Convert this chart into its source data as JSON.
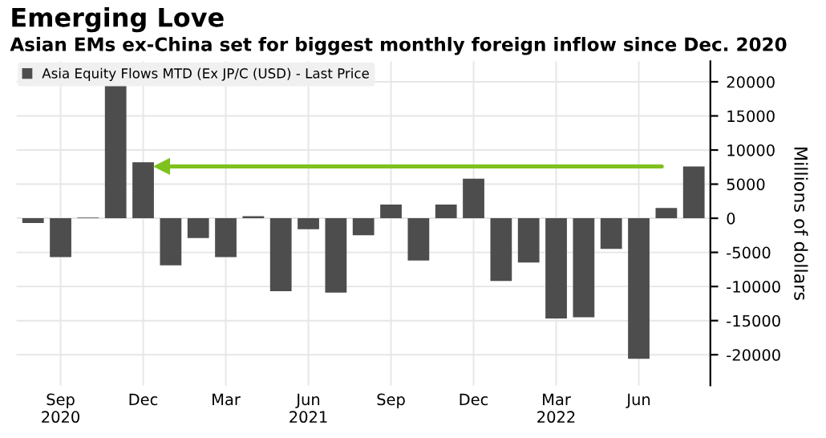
{
  "chart_data": {
    "type": "bar",
    "title": "Emerging Love",
    "subtitle": "Asian EMs ex-China set for biggest monthly foreign inflow since Dec. 2020",
    "ylabel": "Millions of dollars",
    "categories": [
      null,
      "Sep\n2020",
      null,
      null,
      "Dec",
      null,
      null,
      "Mar",
      null,
      null,
      "Jun\n2021",
      null,
      null,
      "Sep",
      null,
      null,
      "Dec",
      null,
      null,
      "Mar\n2022",
      null,
      null,
      "Jun",
      null,
      null
    ],
    "series": [
      {
        "name": "Asia Equity Flows MTD (Ex JP/C (USD) - Last Price",
        "color": "#4d4d4d",
        "values": [
          -700,
          -5700,
          100,
          20000,
          8200,
          -6900,
          -2900,
          -5700,
          300,
          -10700,
          -1600,
          -10900,
          -2500,
          2000,
          -6200,
          2000,
          5800,
          -9200,
          -6500,
          -14700,
          -14500,
          -4500,
          -20600,
          1500,
          7600
        ]
      }
    ],
    "ylim": [
      -24500,
      23000
    ],
    "yticks": [
      -20000,
      -15000,
      -10000,
      -5000,
      0,
      5000,
      10000,
      15000,
      20000
    ],
    "ref_lines": [
      {
        "axis": "y",
        "value": 7600,
        "color": "#7dc21e"
      }
    ],
    "grid": true,
    "legend": "top left"
  }
}
